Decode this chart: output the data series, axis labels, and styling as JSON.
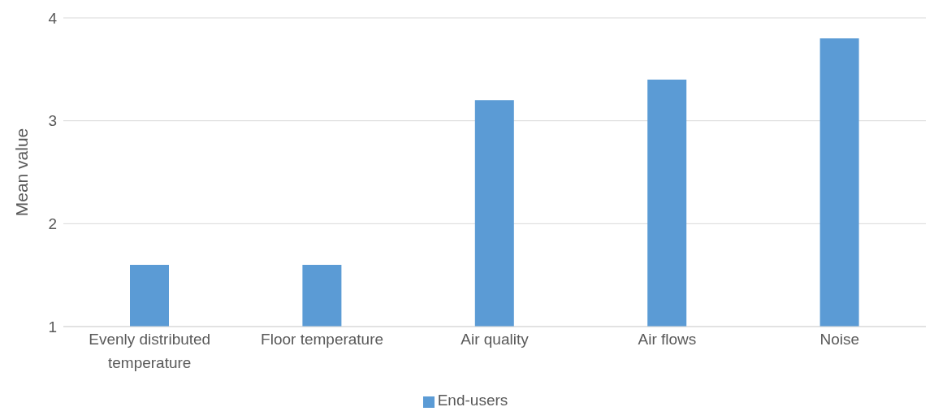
{
  "chart_data": {
    "type": "bar",
    "ylabel": "Mean value",
    "categories": [
      "Evenly distributed temperature",
      "Floor temperature",
      "Air quality",
      "Air flows",
      "Noise"
    ],
    "series": [
      {
        "name": "End-users",
        "color": "#5b9bd5",
        "values": [
          1.6,
          1.6,
          3.2,
          3.4,
          3.8
        ]
      }
    ],
    "ylim": [
      1,
      4
    ],
    "yticks": [
      1,
      2,
      3,
      4
    ],
    "grid": "y",
    "legend": "bottom"
  }
}
